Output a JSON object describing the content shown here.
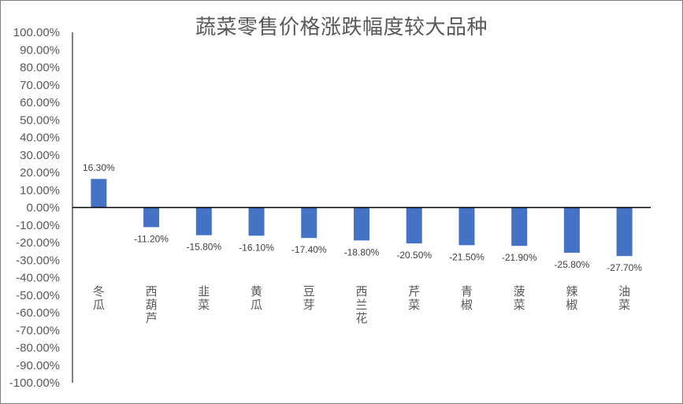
{
  "chart_data": {
    "type": "bar",
    "title": "蔬菜零售价格涨跌幅度较大品种",
    "categories": [
      "冬瓜",
      "西葫芦",
      "韭菜",
      "黄瓜",
      "豆芽",
      "西兰花",
      "芹菜",
      "青椒",
      "菠菜",
      "辣椒",
      "油菜"
    ],
    "values": [
      16.3,
      -11.2,
      -15.8,
      -16.1,
      -17.4,
      -18.8,
      -20.5,
      -21.5,
      -21.9,
      -25.8,
      -27.7
    ],
    "data_labels": [
      "16.30%",
      "-11.20%",
      "-15.80%",
      "-16.10%",
      "-17.40%",
      "-18.80%",
      "-20.50%",
      "-21.50%",
      "-21.90%",
      "-25.80%",
      "-27.70%"
    ],
    "y_ticks": [
      "100.00%",
      "90.00%",
      "80.00%",
      "70.00%",
      "60.00%",
      "50.00%",
      "40.00%",
      "30.00%",
      "20.00%",
      "10.00%",
      "0.00%",
      "-10.00%",
      "-20.00%",
      "-30.00%",
      "-40.00%",
      "-50.00%",
      "-60.00%",
      "-70.00%",
      "-80.00%",
      "-90.00%",
      "-100.00%"
    ],
    "ylim": [
      -100,
      100
    ],
    "xlabel": "",
    "ylabel": "",
    "grid": false,
    "legend": "none",
    "bar_color": "#4472c4"
  }
}
